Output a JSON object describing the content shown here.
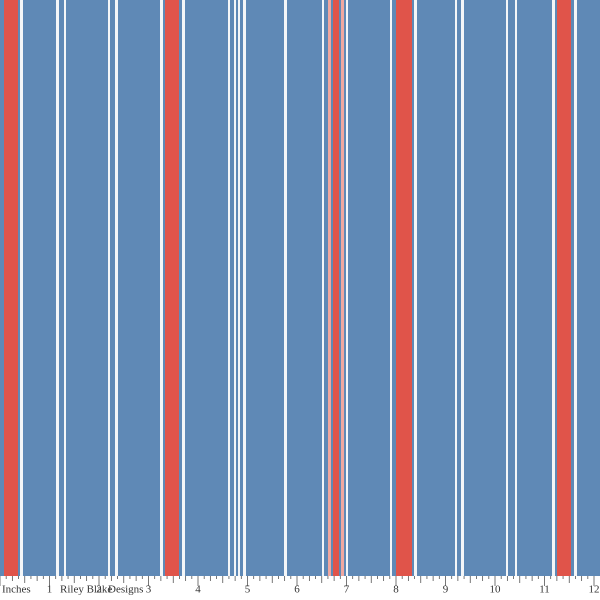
{
  "ruler": {
    "unit_label": "Inches",
    "brand": [
      "Riley Blake",
      "Designs"
    ],
    "numbers": [
      1,
      2,
      3,
      4,
      5,
      6,
      7,
      8,
      9,
      10,
      11,
      12
    ]
  }
}
